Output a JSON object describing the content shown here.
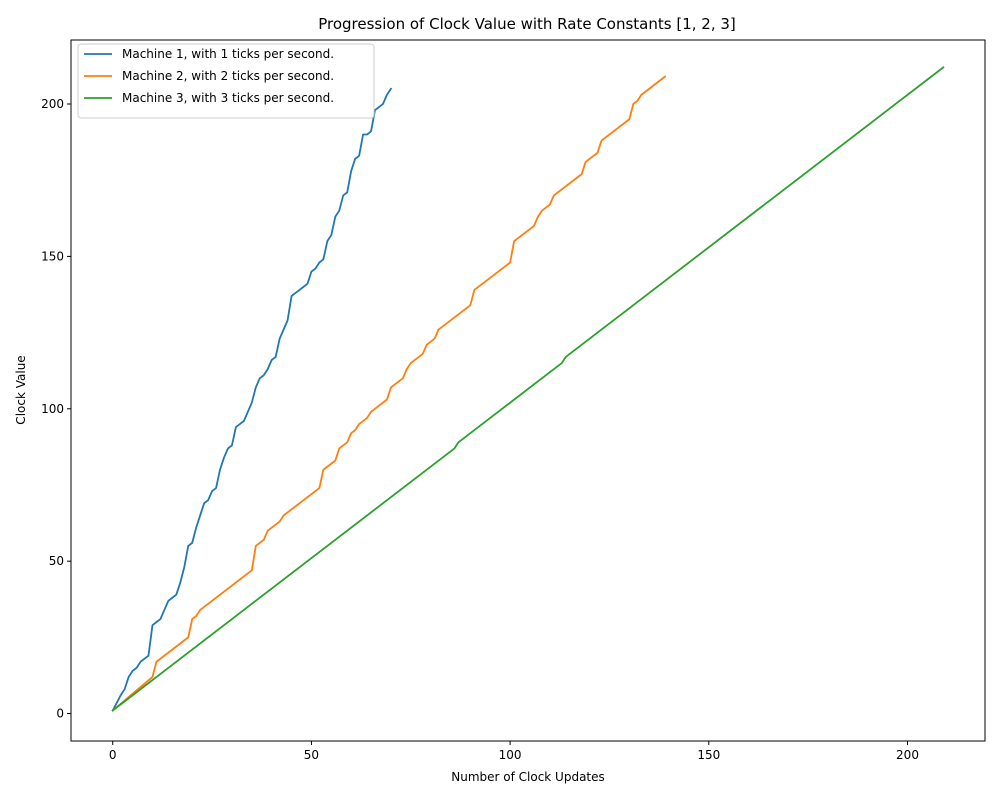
{
  "chart_data": {
    "type": "line",
    "title": "Progression of Clock Value with Rate Constants [1, 2, 3]",
    "xlabel": "Number of Clock Updates",
    "ylabel": "Clock Value",
    "xlim": [
      -10.5,
      219.5
    ],
    "ylim": [
      -9,
      221
    ],
    "xticks": [
      0,
      50,
      100,
      150,
      200
    ],
    "yticks": [
      0,
      50,
      100,
      150,
      200
    ],
    "grid": false,
    "legend_position": "top-left",
    "series": [
      {
        "name": "Machine 1, with 1 ticks per second.",
        "color": "#1f77b4",
        "points": [
          [
            0,
            1
          ],
          [
            2,
            6
          ],
          [
            3,
            8
          ],
          [
            4,
            12
          ],
          [
            5,
            14
          ],
          [
            6,
            15
          ],
          [
            7,
            17
          ],
          [
            8,
            18
          ],
          [
            9,
            19
          ],
          [
            10,
            29
          ],
          [
            11,
            30
          ],
          [
            12,
            31
          ],
          [
            13,
            34
          ],
          [
            14,
            37
          ],
          [
            15,
            38
          ],
          [
            16,
            39
          ],
          [
            17,
            43
          ],
          [
            18,
            48
          ],
          [
            19,
            55
          ],
          [
            20,
            56
          ],
          [
            21,
            61
          ],
          [
            22,
            65
          ],
          [
            23,
            69
          ],
          [
            24,
            70
          ],
          [
            25,
            73
          ],
          [
            26,
            74
          ],
          [
            27,
            80
          ],
          [
            28,
            84
          ],
          [
            29,
            87
          ],
          [
            30,
            88
          ],
          [
            31,
            94
          ],
          [
            32,
            95
          ],
          [
            33,
            96
          ],
          [
            34,
            99
          ],
          [
            35,
            102
          ],
          [
            36,
            107
          ],
          [
            37,
            110
          ],
          [
            38,
            111
          ],
          [
            39,
            113
          ],
          [
            40,
            116
          ],
          [
            41,
            117
          ],
          [
            42,
            123
          ],
          [
            43,
            126
          ],
          [
            44,
            129
          ],
          [
            45,
            137
          ],
          [
            46,
            138
          ],
          [
            47,
            139
          ],
          [
            48,
            140
          ],
          [
            49,
            141
          ],
          [
            50,
            145
          ],
          [
            51,
            146
          ],
          [
            52,
            148
          ],
          [
            53,
            149
          ],
          [
            54,
            155
          ],
          [
            55,
            157
          ],
          [
            56,
            163
          ],
          [
            57,
            165
          ],
          [
            58,
            170
          ],
          [
            59,
            171
          ],
          [
            60,
            178
          ],
          [
            61,
            182
          ],
          [
            62,
            183
          ],
          [
            63,
            190
          ],
          [
            64,
            190
          ],
          [
            65,
            191
          ],
          [
            66,
            198
          ],
          [
            67,
            199
          ],
          [
            68,
            200
          ],
          [
            69,
            203
          ],
          [
            70,
            205
          ]
        ]
      },
      {
        "name": "Machine 2, with 2 ticks per second.",
        "color": "#ff7f0e",
        "points": [
          [
            0,
            1
          ],
          [
            10,
            12
          ],
          [
            11,
            17
          ],
          [
            19,
            25
          ],
          [
            20,
            31
          ],
          [
            21,
            32
          ],
          [
            22,
            34
          ],
          [
            35,
            47
          ],
          [
            36,
            55
          ],
          [
            38,
            57
          ],
          [
            39,
            60
          ],
          [
            42,
            63
          ],
          [
            43,
            65
          ],
          [
            52,
            74
          ],
          [
            53,
            80
          ],
          [
            56,
            83
          ],
          [
            57,
            87
          ],
          [
            59,
            89
          ],
          [
            60,
            92
          ],
          [
            61,
            93
          ],
          [
            62,
            95
          ],
          [
            64,
            97
          ],
          [
            65,
            99
          ],
          [
            69,
            103
          ],
          [
            70,
            107
          ],
          [
            73,
            110
          ],
          [
            74,
            113
          ],
          [
            75,
            115
          ],
          [
            78,
            118
          ],
          [
            79,
            121
          ],
          [
            81,
            123
          ],
          [
            82,
            126
          ],
          [
            90,
            134
          ],
          [
            91,
            139
          ],
          [
            100,
            148
          ],
          [
            101,
            155
          ],
          [
            106,
            160
          ],
          [
            107,
            163
          ],
          [
            108,
            165
          ],
          [
            110,
            167
          ],
          [
            111,
            170
          ],
          [
            118,
            177
          ],
          [
            119,
            181
          ],
          [
            122,
            184
          ],
          [
            123,
            188
          ],
          [
            130,
            195
          ],
          [
            131,
            200
          ],
          [
            132,
            201
          ],
          [
            133,
            203
          ],
          [
            139,
            209
          ]
        ]
      },
      {
        "name": "Machine 3, with 3 ticks per second.",
        "color": "#2ca02c",
        "points": [
          [
            0,
            1
          ],
          [
            86,
            87
          ],
          [
            87,
            89
          ],
          [
            113,
            115
          ],
          [
            114,
            117
          ],
          [
            209,
            212
          ]
        ]
      }
    ]
  }
}
